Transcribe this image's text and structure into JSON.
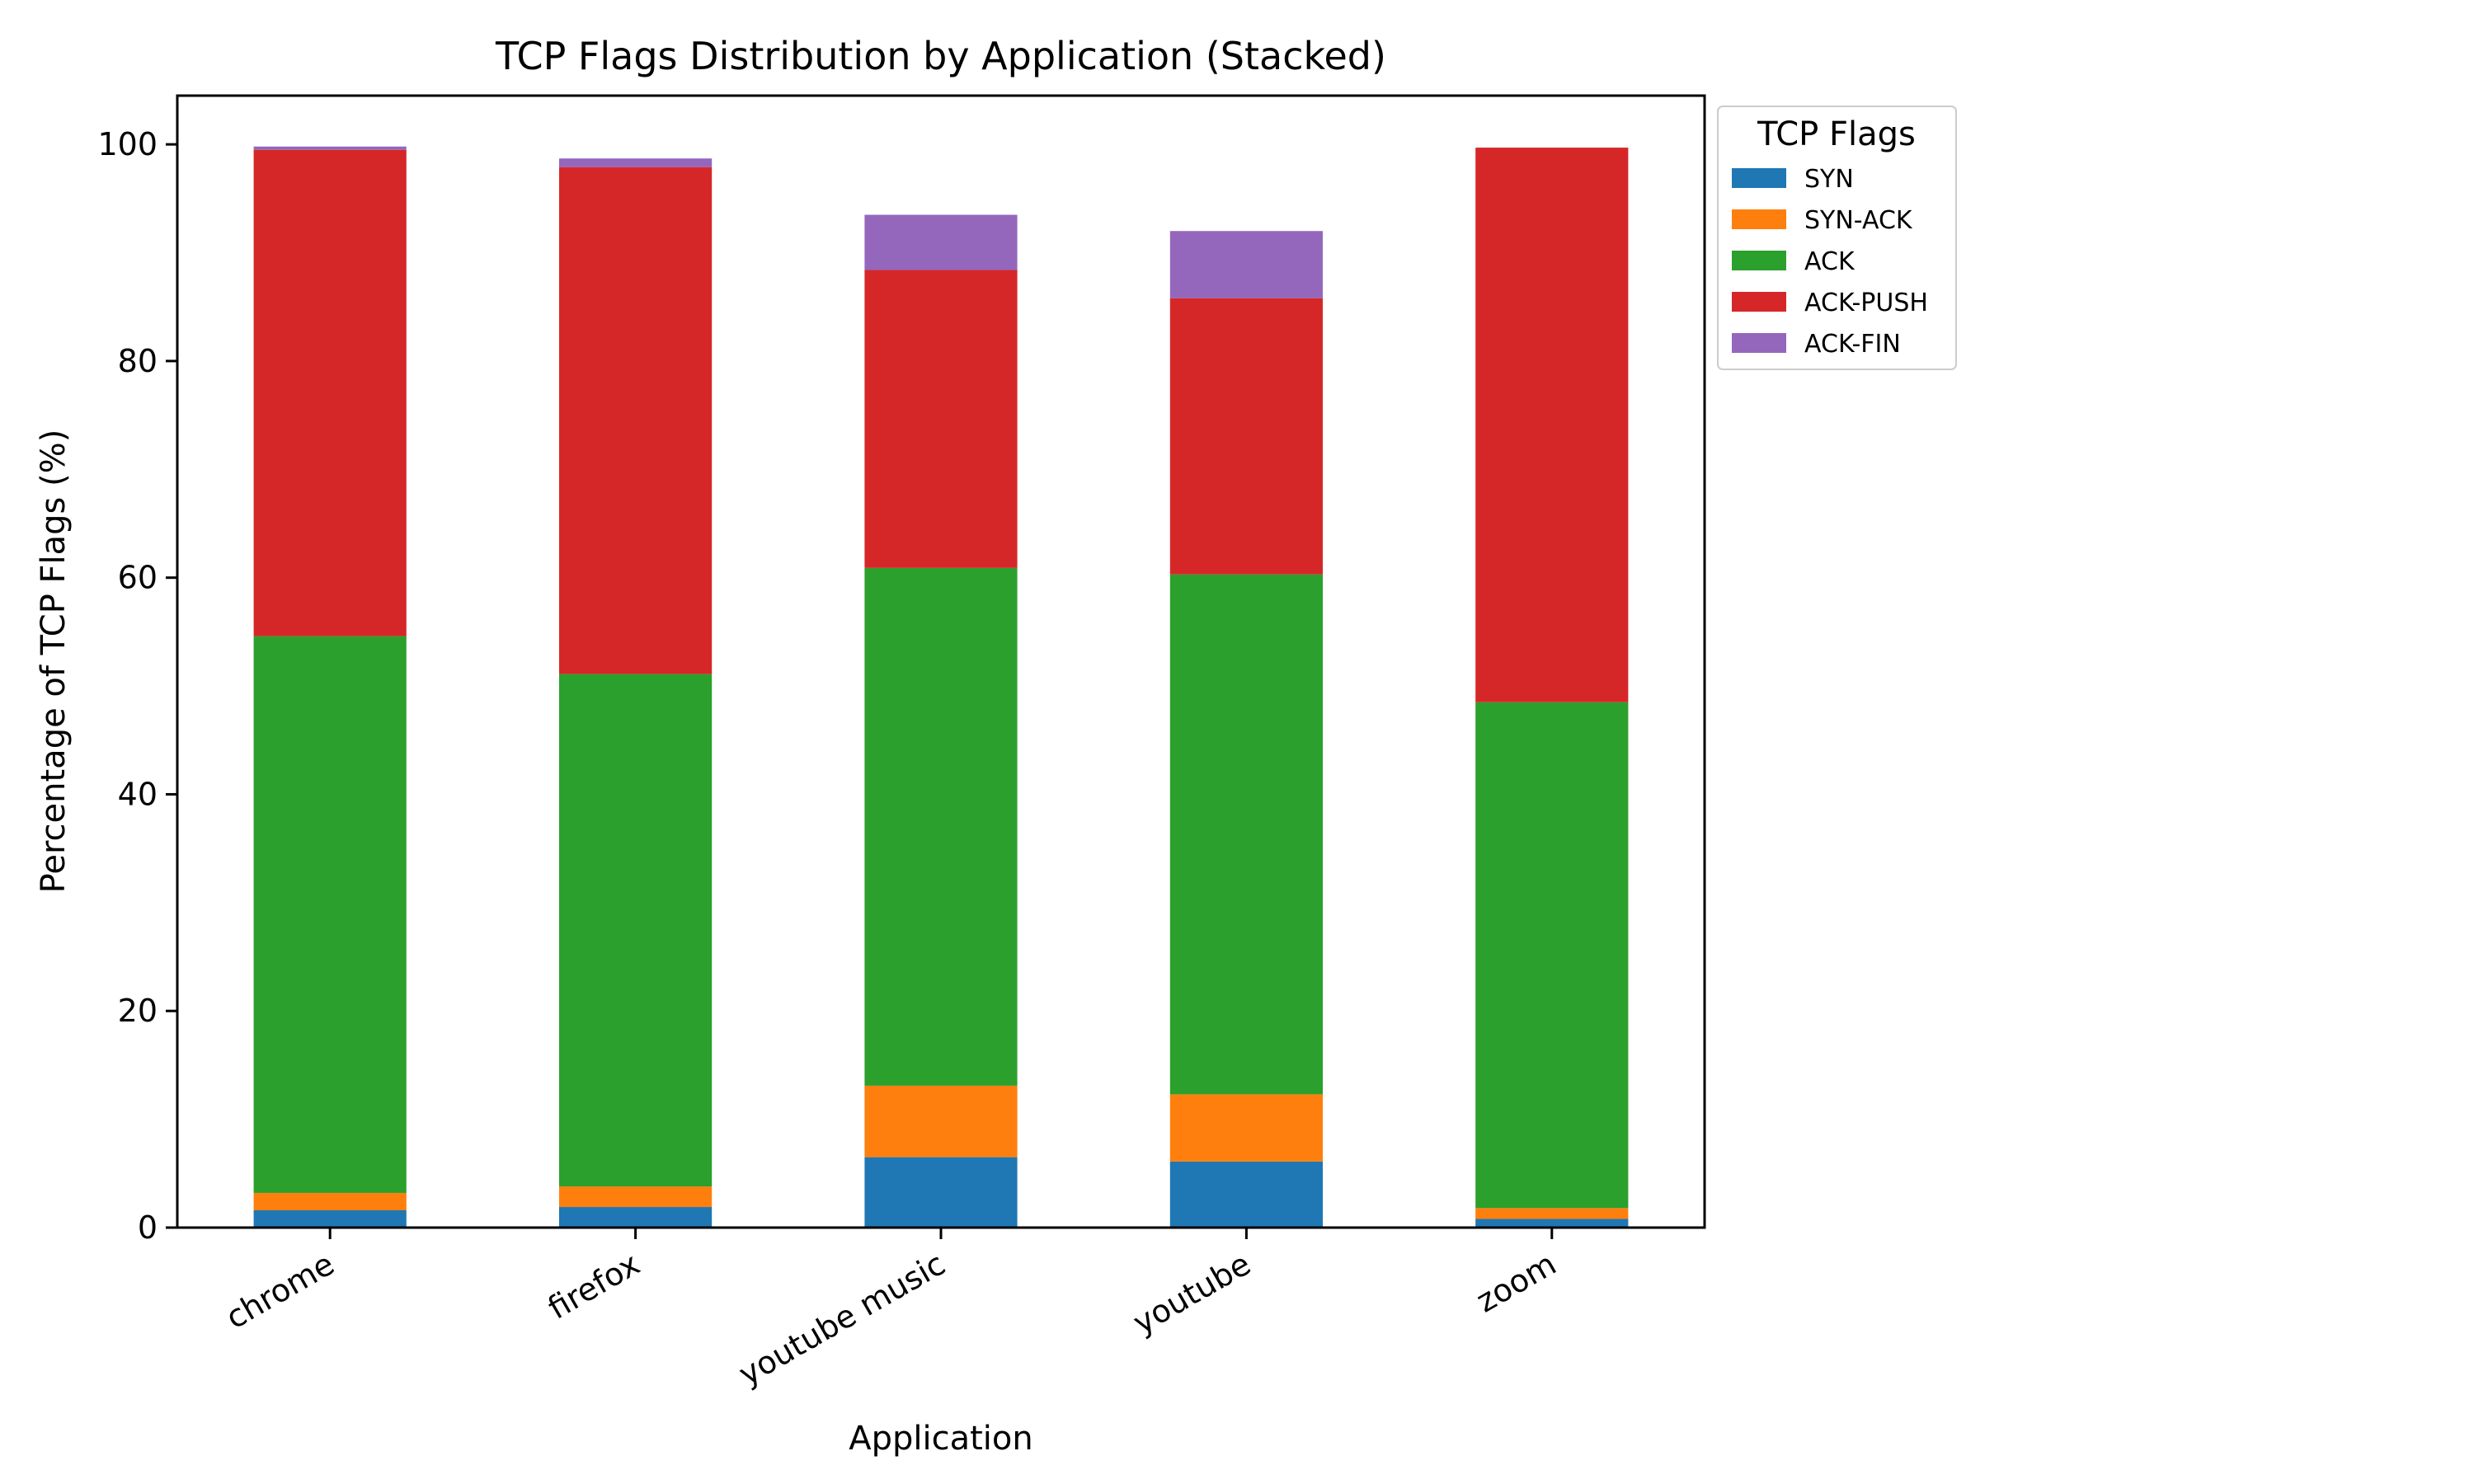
{
  "chart_data": {
    "type": "bar",
    "stacked": true,
    "title": "TCP Flags Distribution by Application (Stacked)",
    "xlabel": "Application",
    "ylabel": "Percentage of TCP Flags (%)",
    "ylim": [
      0,
      104.5
    ],
    "yticks": [
      0,
      20,
      40,
      60,
      80,
      100
    ],
    "grid": false,
    "legend": {
      "title": "TCP Flags",
      "placement": "outside top-right"
    },
    "categories": [
      "chrome",
      "firefox",
      "youtube music",
      "youtube",
      "zoom"
    ],
    "series": [
      {
        "name": "SYN",
        "color": "#1f77b4",
        "values": [
          1.6,
          1.9,
          6.5,
          6.1,
          0.8
        ]
      },
      {
        "name": "SYN-ACK",
        "color": "#ff7f0e",
        "values": [
          1.6,
          1.9,
          6.6,
          6.2,
          1.0
        ]
      },
      {
        "name": "ACK",
        "color": "#2ca02c",
        "values": [
          51.4,
          47.3,
          47.8,
          48.0,
          46.7
        ]
      },
      {
        "name": "ACK-PUSH",
        "color": "#d62728",
        "values": [
          44.9,
          46.8,
          27.5,
          25.5,
          51.2
        ]
      },
      {
        "name": "ACK-FIN",
        "color": "#9467bd",
        "values": [
          0.3,
          0.8,
          5.1,
          6.2,
          0.0
        ]
      }
    ]
  }
}
